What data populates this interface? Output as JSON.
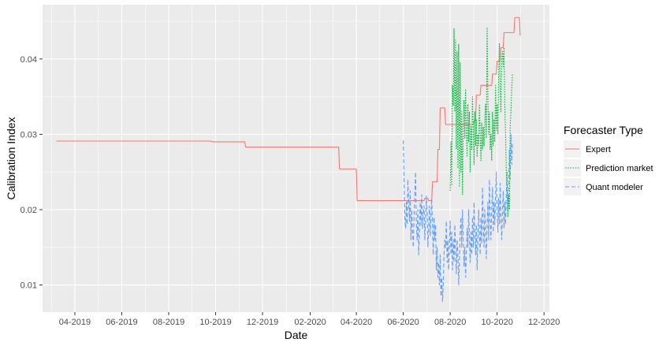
{
  "chart_data": {
    "type": "line",
    "xlabel": "Date",
    "ylabel": "Calibration Index",
    "x_ticks": [
      "2019-04-01",
      "2019-06-01",
      "2019-08-01",
      "2019-10-01",
      "2019-12-01",
      "2020-02-01",
      "2020-04-01",
      "2020-06-01",
      "2020-08-01",
      "2020-10-01",
      "2020-12-01"
    ],
    "x_tick_labels": [
      "04-2019",
      "06-2019",
      "08-2019",
      "10-2019",
      "12-2019",
      "02-2020",
      "04-2020",
      "06-2020",
      "08-2020",
      "10-2020",
      "12-2020"
    ],
    "xlim": [
      "2019-02-18",
      "2020-12-08"
    ],
    "y_ticks": [
      0.01,
      0.02,
      0.03,
      0.04
    ],
    "y_tick_labels": [
      "0.01",
      "0.02",
      "0.03",
      "0.04"
    ],
    "ylim": [
      0.0064,
      0.0472
    ],
    "grid": true,
    "legend": {
      "title": "Forecaster Type",
      "position": "right"
    },
    "series": [
      {
        "name": "Expert",
        "color": "#F8766D",
        "dash": "solid",
        "step": true,
        "points": [
          [
            "2019-03-08",
            0.0291
          ],
          [
            "2019-09-25",
            0.0291
          ],
          [
            "2019-09-26",
            0.029
          ],
          [
            "2019-11-08",
            0.029
          ],
          [
            "2019-11-09",
            0.0283
          ],
          [
            "2020-03-09",
            0.0283
          ],
          [
            "2020-03-10",
            0.0254
          ],
          [
            "2020-04-01",
            0.0254
          ],
          [
            "2020-04-02",
            0.0212
          ],
          [
            "2020-06-28",
            0.0212
          ],
          [
            "2020-06-29",
            0.0215
          ],
          [
            "2020-07-03",
            0.0215
          ],
          [
            "2020-07-04",
            0.0212
          ],
          [
            "2020-07-08",
            0.0212
          ],
          [
            "2020-07-09",
            0.0237
          ],
          [
            "2020-07-15",
            0.0237
          ],
          [
            "2020-07-16",
            0.028
          ],
          [
            "2020-07-18",
            0.028
          ],
          [
            "2020-07-19",
            0.0335
          ],
          [
            "2020-07-25",
            0.0335
          ],
          [
            "2020-07-26",
            0.0313
          ],
          [
            "2020-08-31",
            0.0313
          ],
          [
            "2020-09-01",
            0.0318
          ],
          [
            "2020-09-03",
            0.0318
          ],
          [
            "2020-09-04",
            0.0352
          ],
          [
            "2020-09-09",
            0.0352
          ],
          [
            "2020-09-10",
            0.0365
          ],
          [
            "2020-09-24",
            0.0365
          ],
          [
            "2020-09-25",
            0.038
          ],
          [
            "2020-09-30",
            0.038
          ],
          [
            "2020-10-01",
            0.0397
          ],
          [
            "2020-10-05",
            0.0397
          ],
          [
            "2020-10-06",
            0.0415
          ],
          [
            "2020-10-09",
            0.0415
          ],
          [
            "2020-10-10",
            0.0435
          ],
          [
            "2020-10-23",
            0.0435
          ],
          [
            "2020-10-24",
            0.0455
          ],
          [
            "2020-10-30",
            0.0455
          ],
          [
            "2020-10-31",
            0.0431
          ]
        ]
      },
      {
        "name": "Prediction market",
        "color": "#00BA38",
        "dash": "dotted",
        "step": false,
        "points": [
          [
            "2020-08-01",
            0.0225
          ],
          [
            "2020-08-02",
            0.029
          ],
          [
            "2020-08-03",
            0.0232
          ],
          [
            "2020-08-04",
            0.0365
          ],
          [
            "2020-08-05",
            0.0338
          ],
          [
            "2020-08-06",
            0.044
          ],
          [
            "2020-08-07",
            0.033
          ],
          [
            "2020-08-08",
            0.0425
          ],
          [
            "2020-08-09",
            0.028
          ],
          [
            "2020-08-10",
            0.041
          ],
          [
            "2020-08-11",
            0.0255
          ],
          [
            "2020-08-12",
            0.042
          ],
          [
            "2020-08-13",
            0.023
          ],
          [
            "2020-08-14",
            0.0395
          ],
          [
            "2020-08-15",
            0.025
          ],
          [
            "2020-08-16",
            0.033
          ],
          [
            "2020-08-17",
            0.022
          ],
          [
            "2020-08-18",
            0.031
          ],
          [
            "2020-08-19",
            0.0345
          ],
          [
            "2020-08-20",
            0.0295
          ],
          [
            "2020-08-21",
            0.036
          ],
          [
            "2020-08-22",
            0.031
          ],
          [
            "2020-08-23",
            0.027
          ],
          [
            "2020-08-24",
            0.034
          ],
          [
            "2020-08-25",
            0.029
          ],
          [
            "2020-08-26",
            0.033
          ],
          [
            "2020-08-27",
            0.025
          ],
          [
            "2020-08-28",
            0.031
          ],
          [
            "2020-08-29",
            0.028
          ],
          [
            "2020-08-30",
            0.035
          ],
          [
            "2020-08-31",
            0.031
          ],
          [
            "2020-09-01",
            0.026
          ],
          [
            "2020-09-02",
            0.033
          ],
          [
            "2020-09-03",
            0.0285
          ],
          [
            "2020-09-04",
            0.032
          ],
          [
            "2020-09-05",
            0.027
          ],
          [
            "2020-09-06",
            0.03
          ],
          [
            "2020-09-07",
            0.0285
          ],
          [
            "2020-09-08",
            0.034
          ],
          [
            "2020-09-09",
            0.03
          ],
          [
            "2020-09-10",
            0.0265
          ],
          [
            "2020-09-11",
            0.0315
          ],
          [
            "2020-09-12",
            0.028
          ],
          [
            "2020-09-13",
            0.031
          ],
          [
            "2020-09-14",
            0.0285
          ],
          [
            "2020-09-15",
            0.032
          ],
          [
            "2020-09-16",
            0.034
          ],
          [
            "2020-09-17",
            0.0295
          ],
          [
            "2020-09-18",
            0.0442
          ],
          [
            "2020-09-19",
            0.035
          ],
          [
            "2020-09-20",
            0.03
          ],
          [
            "2020-09-21",
            0.033
          ],
          [
            "2020-09-22",
            0.028
          ],
          [
            "2020-09-23",
            0.03
          ],
          [
            "2020-09-24",
            0.0265
          ],
          [
            "2020-09-25",
            0.033
          ],
          [
            "2020-09-26",
            0.0285
          ],
          [
            "2020-09-27",
            0.032
          ],
          [
            "2020-09-28",
            0.029
          ],
          [
            "2020-09-29",
            0.0365
          ],
          [
            "2020-09-30",
            0.0305
          ],
          [
            "2020-10-01",
            0.034
          ],
          [
            "2020-10-02",
            0.03
          ],
          [
            "2020-10-03",
            0.038
          ],
          [
            "2020-10-04",
            0.042
          ],
          [
            "2020-10-05",
            0.036
          ],
          [
            "2020-10-06",
            0.033
          ],
          [
            "2020-10-07",
            0.04
          ],
          [
            "2020-10-08",
            0.041
          ],
          [
            "2020-10-09",
            0.039
          ],
          [
            "2020-10-10",
            0.0415
          ],
          [
            "2020-10-11",
            0.034
          ],
          [
            "2020-10-12",
            0.03
          ],
          [
            "2020-10-13",
            0.025
          ],
          [
            "2020-10-14",
            0.0225
          ],
          [
            "2020-10-15",
            0.019
          ],
          [
            "2020-10-16",
            0.022
          ],
          [
            "2020-10-17",
            0.02
          ],
          [
            "2020-10-18",
            0.031
          ],
          [
            "2020-10-19",
            0.033
          ],
          [
            "2020-10-20",
            0.036
          ],
          [
            "2020-10-21",
            0.038
          ]
        ]
      },
      {
        "name": "Quant modeler",
        "color": "#619CFF",
        "dash": "dashed",
        "step": false,
        "points": [
          [
            "2020-06-01",
            0.0292
          ],
          [
            "2020-06-02",
            0.024
          ],
          [
            "2020-06-03",
            0.019
          ],
          [
            "2020-06-04",
            0.0175
          ],
          [
            "2020-06-05",
            0.021
          ],
          [
            "2020-06-06",
            0.018
          ],
          [
            "2020-06-07",
            0.024
          ],
          [
            "2020-06-08",
            0.021
          ],
          [
            "2020-06-09",
            0.0185
          ],
          [
            "2020-06-10",
            0.0225
          ],
          [
            "2020-06-11",
            0.016
          ],
          [
            "2020-06-12",
            0.02
          ],
          [
            "2020-06-13",
            0.017
          ],
          [
            "2020-06-14",
            0.015
          ],
          [
            "2020-06-15",
            0.019
          ],
          [
            "2020-06-16",
            0.022
          ],
          [
            "2020-06-17",
            0.025
          ],
          [
            "2020-06-18",
            0.018
          ],
          [
            "2020-06-19",
            0.016
          ],
          [
            "2020-06-20",
            0.02
          ],
          [
            "2020-06-21",
            0.014
          ],
          [
            "2020-06-22",
            0.017
          ],
          [
            "2020-06-23",
            0.021
          ],
          [
            "2020-06-24",
            0.018
          ],
          [
            "2020-06-25",
            0.022
          ],
          [
            "2020-06-26",
            0.0175
          ],
          [
            "2020-06-27",
            0.0195
          ],
          [
            "2020-06-28",
            0.0205
          ],
          [
            "2020-06-29",
            0.016
          ],
          [
            "2020-06-30",
            0.0185
          ],
          [
            "2020-07-01",
            0.0218
          ],
          [
            "2020-07-02",
            0.02
          ],
          [
            "2020-07-03",
            0.015
          ],
          [
            "2020-07-04",
            0.0175
          ],
          [
            "2020-07-05",
            0.0205
          ],
          [
            "2020-07-06",
            0.0165
          ],
          [
            "2020-07-07",
            0.019
          ],
          [
            "2020-07-08",
            0.0215
          ],
          [
            "2020-07-09",
            0.018
          ],
          [
            "2020-07-10",
            0.014
          ],
          [
            "2020-07-11",
            0.019
          ],
          [
            "2020-07-12",
            0.016
          ],
          [
            "2020-07-13",
            0.018
          ],
          [
            "2020-07-14",
            0.012
          ],
          [
            "2020-07-15",
            0.015
          ],
          [
            "2020-07-16",
            0.011
          ],
          [
            "2020-07-17",
            0.013
          ],
          [
            "2020-07-18",
            0.01
          ],
          [
            "2020-07-19",
            0.014
          ],
          [
            "2020-07-20",
            0.0085
          ],
          [
            "2020-07-21",
            0.011
          ],
          [
            "2020-07-22",
            0.0078
          ],
          [
            "2020-07-23",
            0.01
          ],
          [
            "2020-07-24",
            0.014
          ],
          [
            "2020-07-25",
            0.016
          ],
          [
            "2020-07-26",
            0.015
          ],
          [
            "2020-07-27",
            0.0185
          ],
          [
            "2020-07-28",
            0.013
          ],
          [
            "2020-07-29",
            0.016
          ],
          [
            "2020-07-30",
            0.012
          ],
          [
            "2020-07-31",
            0.015
          ],
          [
            "2020-08-01",
            0.0185
          ],
          [
            "2020-08-02",
            0.014
          ],
          [
            "2020-08-03",
            0.017
          ],
          [
            "2020-08-04",
            0.012
          ],
          [
            "2020-08-05",
            0.016
          ],
          [
            "2020-08-06",
            0.013
          ],
          [
            "2020-08-07",
            0.018
          ],
          [
            "2020-08-08",
            0.015
          ],
          [
            "2020-08-09",
            0.0115
          ],
          [
            "2020-08-10",
            0.016
          ],
          [
            "2020-08-11",
            0.014
          ],
          [
            "2020-08-12",
            0.01
          ],
          [
            "2020-08-13",
            0.013
          ],
          [
            "2020-08-14",
            0.017
          ],
          [
            "2020-08-15",
            0.019
          ],
          [
            "2020-08-16",
            0.015
          ],
          [
            "2020-08-17",
            0.02
          ],
          [
            "2020-08-18",
            0.016
          ],
          [
            "2020-08-19",
            0.0125
          ],
          [
            "2020-08-20",
            0.015
          ],
          [
            "2020-08-21",
            0.011
          ],
          [
            "2020-08-22",
            0.014
          ],
          [
            "2020-08-23",
            0.0175
          ],
          [
            "2020-08-24",
            0.015
          ],
          [
            "2020-08-25",
            0.02
          ],
          [
            "2020-08-26",
            0.0165
          ],
          [
            "2020-08-27",
            0.013
          ],
          [
            "2020-08-28",
            0.017
          ],
          [
            "2020-08-29",
            0.014
          ],
          [
            "2020-08-30",
            0.019
          ],
          [
            "2020-08-31",
            0.015
          ],
          [
            "2020-09-01",
            0.021
          ],
          [
            "2020-09-02",
            0.0175
          ],
          [
            "2020-09-03",
            0.014
          ],
          [
            "2020-09-04",
            0.018
          ],
          [
            "2020-09-05",
            0.012
          ],
          [
            "2020-09-06",
            0.016
          ],
          [
            "2020-09-07",
            0.02
          ],
          [
            "2020-09-08",
            0.017
          ],
          [
            "2020-09-09",
            0.014
          ],
          [
            "2020-09-10",
            0.019
          ],
          [
            "2020-09-11",
            0.0155
          ],
          [
            "2020-09-12",
            0.023
          ],
          [
            "2020-09-13",
            0.018
          ],
          [
            "2020-09-14",
            0.015
          ],
          [
            "2020-09-15",
            0.02
          ],
          [
            "2020-09-16",
            0.017
          ],
          [
            "2020-09-17",
            0.0135
          ],
          [
            "2020-09-18",
            0.018
          ],
          [
            "2020-09-19",
            0.021
          ],
          [
            "2020-09-20",
            0.016
          ],
          [
            "2020-09-21",
            0.024
          ],
          [
            "2020-09-22",
            0.019
          ],
          [
            "2020-09-23",
            0.016
          ],
          [
            "2020-09-24",
            0.02
          ],
          [
            "2020-09-25",
            0.023
          ],
          [
            "2020-09-26",
            0.017
          ],
          [
            "2020-09-27",
            0.021
          ],
          [
            "2020-09-28",
            0.018
          ],
          [
            "2020-09-29",
            0.022
          ],
          [
            "2020-09-30",
            0.025
          ],
          [
            "2020-10-01",
            0.02
          ],
          [
            "2020-10-02",
            0.017
          ],
          [
            "2020-10-03",
            0.0215
          ],
          [
            "2020-10-04",
            0.018
          ],
          [
            "2020-10-05",
            0.0235
          ],
          [
            "2020-10-06",
            0.019
          ],
          [
            "2020-10-07",
            0.016
          ],
          [
            "2020-10-08",
            0.02
          ],
          [
            "2020-10-09",
            0.0225
          ],
          [
            "2020-10-10",
            0.0175
          ],
          [
            "2020-10-11",
            0.021
          ],
          [
            "2020-10-12",
            0.018
          ],
          [
            "2020-10-13",
            0.022
          ],
          [
            "2020-10-14",
            0.025
          ],
          [
            "2020-10-15",
            0.02
          ],
          [
            "2020-10-16",
            0.023
          ],
          [
            "2020-10-17",
            0.028
          ],
          [
            "2020-10-18",
            0.024
          ],
          [
            "2020-10-19",
            0.03
          ],
          [
            "2020-10-20",
            0.026
          ],
          [
            "2020-10-21",
            0.029
          ]
        ]
      }
    ]
  }
}
